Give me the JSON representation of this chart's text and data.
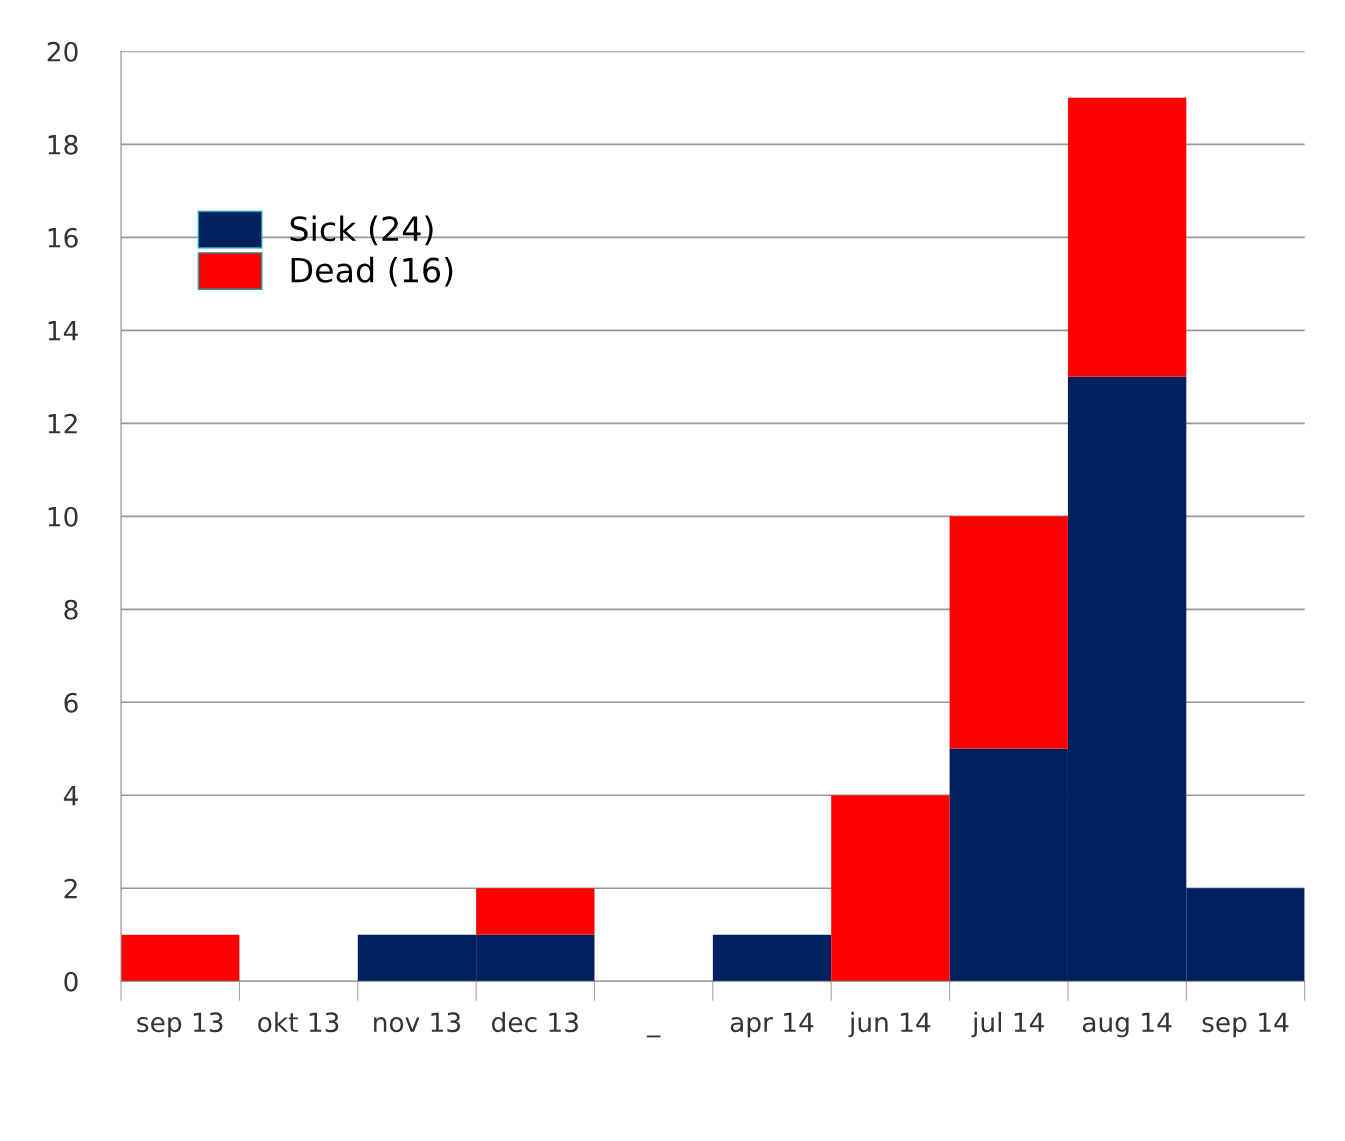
{
  "chart_data": {
    "type": "bar",
    "stacked": true,
    "categories": [
      "sep 13",
      "okt 13",
      "nov 13",
      "dec 13",
      "_",
      "apr 14",
      "jun 14",
      "jul 14",
      "aug 14",
      "sep 14"
    ],
    "series": [
      {
        "name": "Sick (24)",
        "color": "#002060",
        "values": [
          0,
          0,
          1,
          1,
          0,
          1,
          0,
          5,
          13,
          2
        ]
      },
      {
        "name": "Dead (16)",
        "color": "#ff0000",
        "values": [
          1,
          0,
          0,
          1,
          0,
          0,
          4,
          5,
          6,
          0
        ]
      }
    ],
    "ylim": [
      0,
      20
    ],
    "yticks": [
      0,
      2,
      4,
      6,
      8,
      10,
      12,
      14,
      16,
      18,
      20
    ],
    "grid": "y",
    "legend": "top left"
  }
}
